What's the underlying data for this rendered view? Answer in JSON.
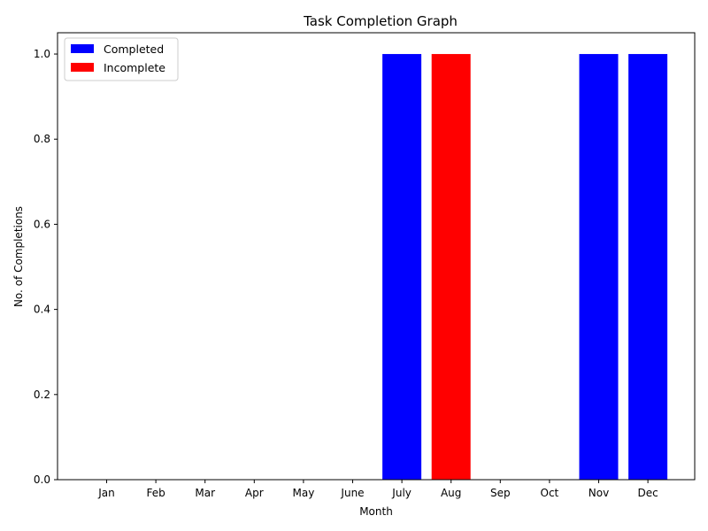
{
  "chart_data": {
    "type": "bar",
    "title": "Task Completion Graph",
    "xlabel": "Month",
    "ylabel": "No. of Completions",
    "categories": [
      "Jan",
      "Feb",
      "Mar",
      "Apr",
      "May",
      "June",
      "July",
      "Aug",
      "Sep",
      "Oct",
      "Nov",
      "Dec"
    ],
    "series": [
      {
        "name": "Completed",
        "color": "#0000ff",
        "values": [
          0,
          0,
          0,
          0,
          0,
          0,
          1,
          0,
          0,
          0,
          1,
          1
        ]
      },
      {
        "name": "Incomplete",
        "color": "#ff0000",
        "values": [
          0,
          0,
          0,
          0,
          0,
          0,
          0,
          1,
          0,
          0,
          0,
          0
        ]
      }
    ],
    "ylim": [
      0,
      1.05
    ],
    "yticks": [
      0.0,
      0.2,
      0.4,
      0.6,
      0.8,
      1.0
    ],
    "ytick_labels": [
      "0.0",
      "0.2",
      "0.4",
      "0.6",
      "0.8",
      "1.0"
    ],
    "grid": false,
    "legend_position": "top-left"
  }
}
